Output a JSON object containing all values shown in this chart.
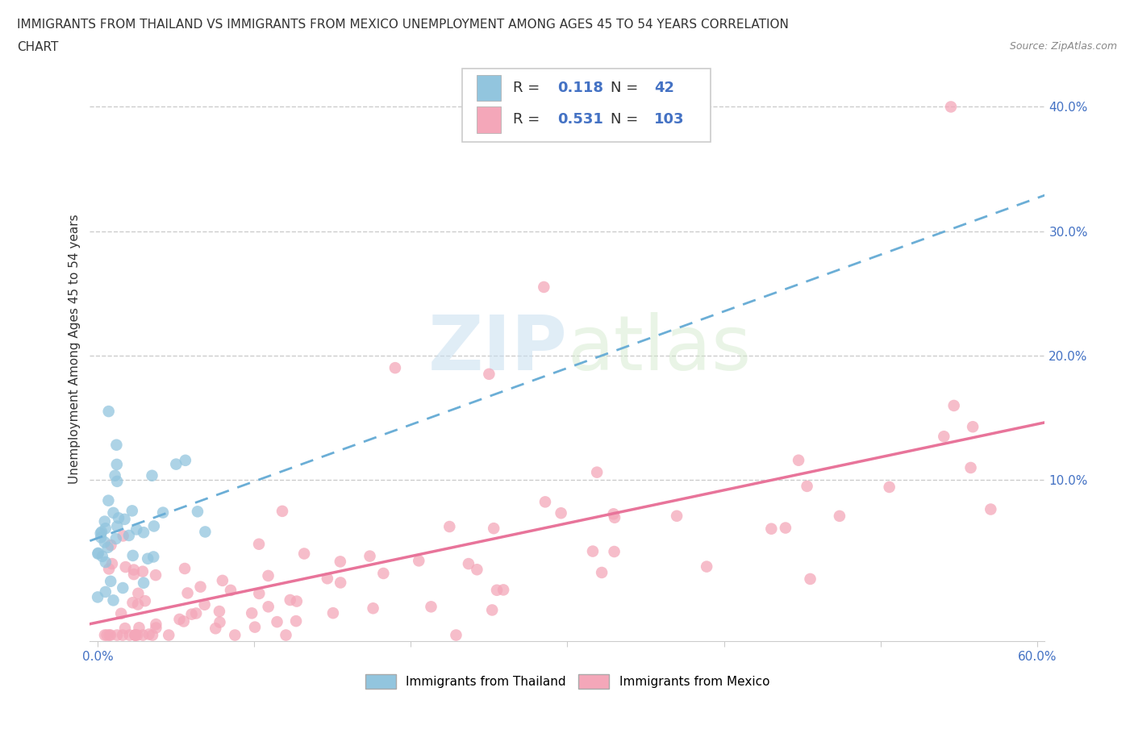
{
  "title_line1": "IMMIGRANTS FROM THAILAND VS IMMIGRANTS FROM MEXICO UNEMPLOYMENT AMONG AGES 45 TO 54 YEARS CORRELATION",
  "title_line2": "CHART",
  "source": "Source: ZipAtlas.com",
  "ylabel": "Unemployment Among Ages 45 to 54 years",
  "xlim": [
    -0.005,
    0.605
  ],
  "ylim": [
    -0.03,
    0.44
  ],
  "xtick_edge_labels": [
    "0.0%",
    "60.0%"
  ],
  "xtick_edge_vals": [
    0.0,
    0.6
  ],
  "ytick_labels": [
    "10.0%",
    "20.0%",
    "30.0%",
    "40.0%"
  ],
  "ytick_vals": [
    0.1,
    0.2,
    0.3,
    0.4
  ],
  "color_thailand": "#92C5DE",
  "color_mexico": "#F4A7B9",
  "trendline_thailand_color": "#6BAED6",
  "trendline_mexico_color": "#E8749A",
  "R_thailand": 0.118,
  "N_thailand": 42,
  "R_mexico": 0.531,
  "N_mexico": 103,
  "watermark_zip": "ZIP",
  "watermark_atlas": "atlas",
  "legend_label_thailand": "Immigrants from Thailand",
  "legend_label_mexico": "Immigrants from Mexico",
  "background_color": "#ffffff",
  "gridline_color": "#cccccc",
  "tick_label_color": "#4472C4",
  "title_color": "#333333",
  "ylabel_color": "#333333"
}
